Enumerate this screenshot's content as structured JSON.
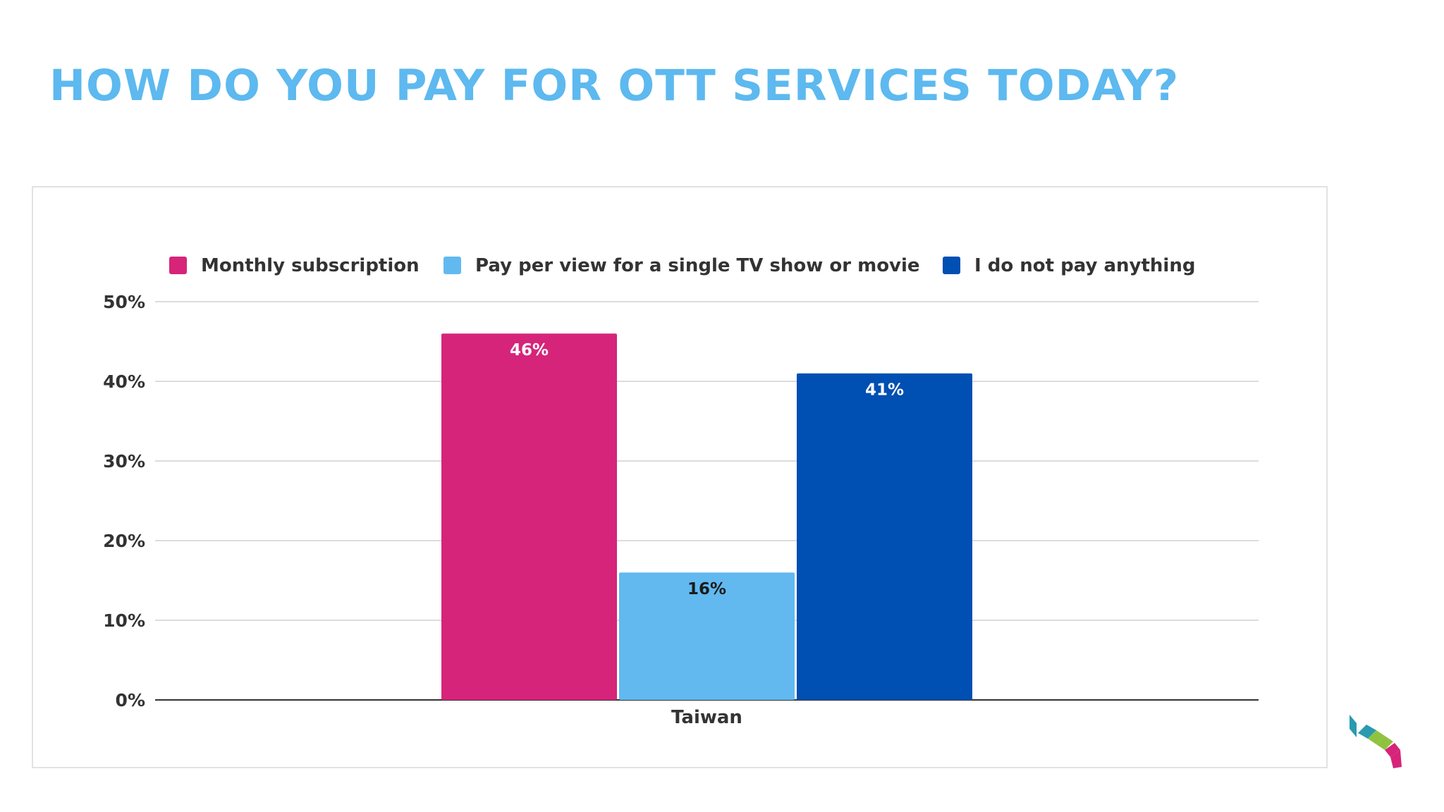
{
  "slide": {
    "title": "HOW DO YOU PAY FOR OTT SERVICES TODAY?"
  },
  "colors": {
    "title": "#5db9ef",
    "monthly": "#d6247a",
    "ppv": "#61b9f0",
    "none": "#004fb2"
  },
  "chart_data": {
    "type": "bar",
    "title": "",
    "xlabel": "",
    "ylabel": "",
    "categories": [
      "Taiwan"
    ],
    "series": [
      {
        "name": "Monthly subscription",
        "values": [
          46
        ],
        "labels": [
          "46%"
        ],
        "color": "#d6247a",
        "label_color": "#ffffff"
      },
      {
        "name": "Pay per view for a single TV show or movie",
        "values": [
          16
        ],
        "labels": [
          "16%"
        ],
        "color": "#61b9f0",
        "label_color": "#1b1b1b"
      },
      {
        "name": "I do not pay anything",
        "values": [
          41
        ],
        "labels": [
          "41%"
        ],
        "color": "#004fb2",
        "label_color": "#ffffff"
      }
    ],
    "ylim": [
      0,
      50
    ],
    "yticks": [
      0,
      10,
      20,
      30,
      40,
      50
    ],
    "ytick_labels": [
      "0%",
      "10%",
      "20%",
      "30%",
      "40%",
      "50%"
    ],
    "grid": true,
    "legend": "top"
  },
  "logo": {
    "icon": "brand-cube-logo-icon"
  }
}
